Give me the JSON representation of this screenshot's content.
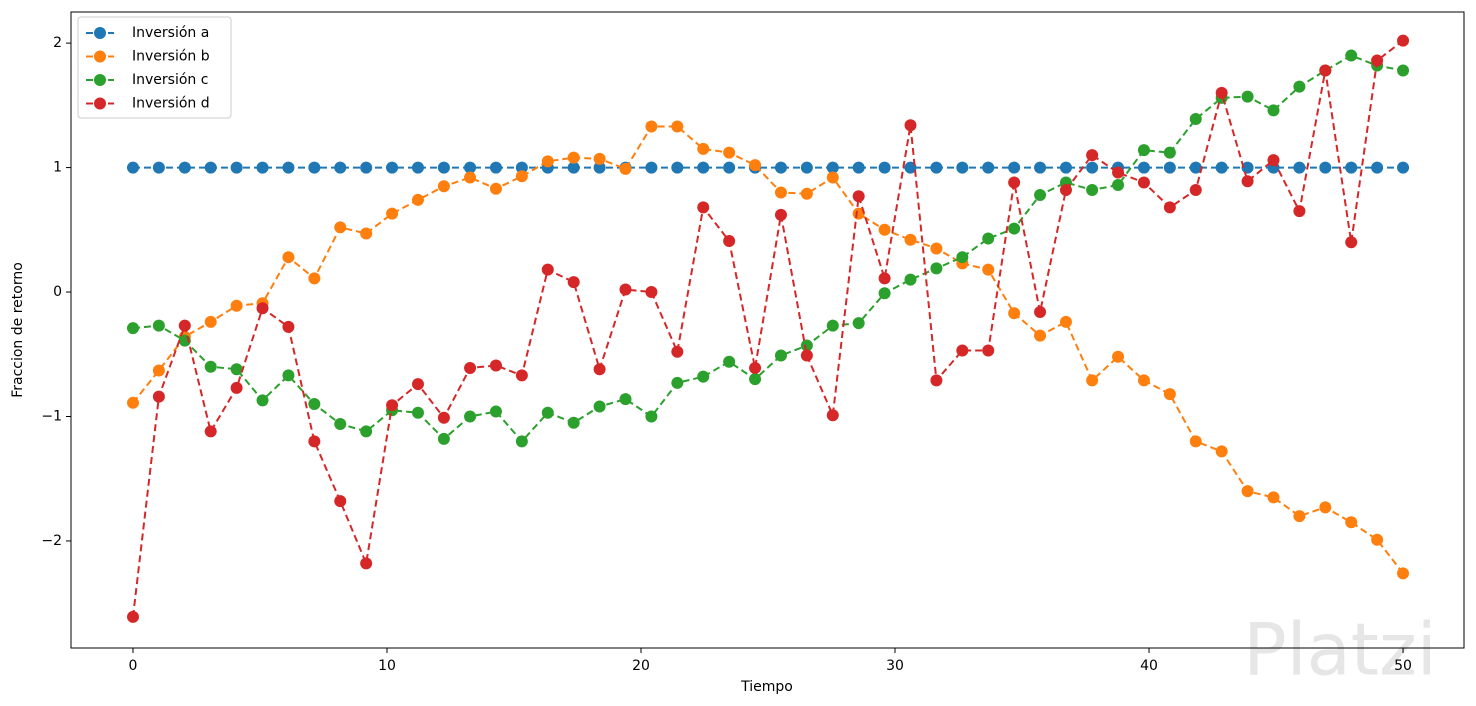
{
  "chart_data": {
    "type": "line",
    "xlabel": "Tiempo",
    "ylabel": "Fraccion de retorno",
    "x": [
      0,
      1.02,
      2.04,
      3.06,
      4.08,
      5.1,
      6.12,
      7.14,
      8.16,
      9.18,
      10.2,
      11.22,
      12.24,
      13.27,
      14.29,
      15.31,
      16.33,
      17.35,
      18.37,
      19.39,
      20.41,
      21.43,
      22.45,
      23.47,
      24.49,
      25.51,
      26.53,
      27.55,
      28.57,
      29.59,
      30.61,
      31.63,
      32.65,
      33.67,
      34.69,
      35.71,
      36.73,
      37.76,
      38.78,
      39.8,
      40.82,
      41.84,
      42.86,
      43.88,
      44.9,
      45.92,
      46.94,
      47.96,
      48.98,
      50
    ],
    "series": [
      {
        "name": "Inversión a",
        "color": "#1f77b4",
        "values": [
          1,
          1,
          1,
          1,
          1,
          1,
          1,
          1,
          1,
          1,
          1,
          1,
          1,
          1,
          1,
          1,
          1,
          1,
          1,
          1,
          1,
          1,
          1,
          1,
          1,
          1,
          1,
          1,
          1,
          1,
          1,
          1,
          1,
          1,
          1,
          1,
          1,
          1,
          1,
          1,
          1,
          1,
          1,
          1,
          1,
          1,
          1,
          1,
          1,
          1
        ]
      },
      {
        "name": "Inversión b",
        "color": "#ff7f0e",
        "values": [
          -0.89,
          -0.63,
          -0.36,
          -0.24,
          -0.11,
          -0.09,
          0.28,
          0.11,
          0.52,
          0.47,
          0.63,
          0.74,
          0.85,
          0.92,
          0.83,
          0.93,
          1.05,
          1.08,
          1.07,
          0.99,
          1.33,
          1.33,
          1.15,
          1.12,
          1.02,
          0.8,
          0.79,
          0.92,
          0.63,
          0.5,
          0.42,
          0.35,
          0.23,
          0.18,
          -0.17,
          -0.35,
          -0.24,
          -0.71,
          -0.52,
          -0.71,
          -0.82,
          -1.2,
          -1.28,
          -1.6,
          -1.65,
          -1.8,
          -1.73,
          -1.85,
          -1.99,
          -2.26
        ]
      },
      {
        "name": "Inversión c",
        "color": "#2ca02c",
        "values": [
          -0.29,
          -0.27,
          -0.39,
          -0.6,
          -0.62,
          -0.87,
          -0.67,
          -0.9,
          -1.06,
          -1.12,
          -0.95,
          -0.97,
          -1.18,
          -1.0,
          -0.96,
          -1.2,
          -0.97,
          -1.05,
          -0.92,
          -0.86,
          -1.0,
          -0.73,
          -0.68,
          -0.56,
          -0.7,
          -0.51,
          -0.43,
          -0.27,
          -0.25,
          -0.01,
          0.1,
          0.19,
          0.28,
          0.43,
          0.51,
          0.78,
          0.88,
          0.82,
          0.86,
          1.14,
          1.12,
          1.39,
          1.56,
          1.57,
          1.46,
          1.65,
          1.78,
          1.9,
          1.82,
          1.78
        ]
      },
      {
        "name": "Inversión d",
        "color": "#d62728",
        "values": [
          -2.61,
          -0.84,
          -0.27,
          -1.12,
          -0.77,
          -0.13,
          -0.28,
          -1.2,
          -1.68,
          -2.18,
          -0.91,
          -0.74,
          -1.01,
          -0.61,
          -0.59,
          -0.67,
          0.18,
          0.08,
          -0.62,
          0.02,
          0.0,
          -0.48,
          0.68,
          0.41,
          -0.61,
          0.62,
          -0.51,
          -0.99,
          0.77,
          0.11,
          1.34,
          -0.71,
          -0.47,
          -0.47,
          0.88,
          -0.16,
          0.82,
          1.1,
          0.96,
          0.88,
          0.68,
          0.82,
          1.6,
          0.89,
          1.06,
          0.65,
          1.78,
          0.4,
          1.86,
          2.02
        ]
      }
    ],
    "xlim": [
      -2.44,
      52.4
    ],
    "ylim": [
      -2.86,
      2.25
    ],
    "xticks": [
      0,
      10,
      20,
      30,
      40,
      50
    ],
    "yticks": [
      {
        "value": -2,
        "label": "−2"
      },
      {
        "value": -1,
        "label": "−1"
      },
      0,
      1,
      2
    ],
    "legend": "upper left",
    "line_style": "dashed",
    "marker": "circle"
  },
  "watermark": "Platzi"
}
